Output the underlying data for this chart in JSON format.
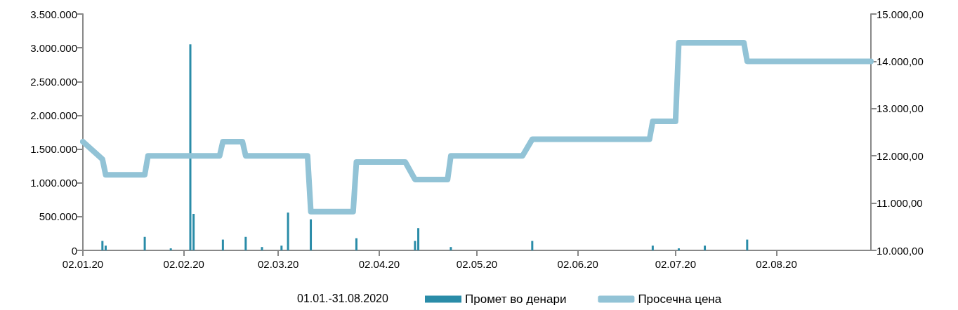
{
  "chart_data": {
    "type": "bar",
    "legend_title": "01.01.-31.08.2020",
    "xlim": [
      "2020-01-02",
      "2020-08-31"
    ],
    "xticks": [
      {
        "value": "2020-01-02",
        "label": "02.01.20"
      },
      {
        "value": "2020-02-02",
        "label": "02.02.20"
      },
      {
        "value": "2020-03-02",
        "label": "02.03.20"
      },
      {
        "value": "2020-04-02",
        "label": "02.04.20"
      },
      {
        "value": "2020-05-02",
        "label": "02.05.20"
      },
      {
        "value": "2020-06-02",
        "label": "02.06.20"
      },
      {
        "value": "2020-07-02",
        "label": "02.07.20"
      },
      {
        "value": "2020-08-02",
        "label": "02.08.20"
      }
    ],
    "ylim": [
      0,
      3500000
    ],
    "yticks": [
      {
        "value": 0,
        "label": "0"
      },
      {
        "value": 500000,
        "label": "500.000"
      },
      {
        "value": 1000000,
        "label": "1.000.000"
      },
      {
        "value": 1500000,
        "label": "1.500.000"
      },
      {
        "value": 2000000,
        "label": "2.000.000"
      },
      {
        "value": 2500000,
        "label": "2.500.000"
      },
      {
        "value": 3000000,
        "label": "3.000.000"
      },
      {
        "value": 3500000,
        "label": "3.500.000"
      }
    ],
    "y2lim": [
      10000,
      15000
    ],
    "y2ticks": [
      {
        "value": 10000,
        "label": "10.000,00"
      },
      {
        "value": 11000,
        "label": "11.000,00"
      },
      {
        "value": 12000,
        "label": "12.000,00"
      },
      {
        "value": 13000,
        "label": "13.000,00"
      },
      {
        "value": 14000,
        "label": "14.000,00"
      },
      {
        "value": 15000,
        "label": "15.000,00"
      }
    ],
    "grid": false,
    "legend": "bottom",
    "series": [
      {
        "name": "Промет во денари",
        "color": "#2a8ca8",
        "x": [
          "2020-01-08",
          "2020-01-09",
          "2020-01-21",
          "2020-01-29",
          "2020-02-04",
          "2020-02-05",
          "2020-02-14",
          "2020-02-21",
          "2020-02-26",
          "2020-03-03",
          "2020-03-05",
          "2020-03-12",
          "2020-03-26",
          "2020-04-13",
          "2020-04-14",
          "2020-04-24",
          "2020-05-19",
          "2020-06-25",
          "2020-07-03",
          "2020-07-11",
          "2020-07-24"
        ],
        "values": [
          140000,
          70000,
          200000,
          30000,
          3050000,
          540000,
          160000,
          200000,
          50000,
          70000,
          560000,
          460000,
          180000,
          140000,
          330000,
          50000,
          140000,
          70000,
          30000,
          70000,
          160000
        ]
      },
      {
        "name": "Просечна цена",
        "type": "line",
        "axis": "y2",
        "color": "#92c3d6",
        "marker": "none",
        "line_style": "solid",
        "x": [
          "2020-01-02",
          "2020-01-08",
          "2020-01-09",
          "2020-01-21",
          "2020-01-22",
          "2020-02-13",
          "2020-02-14",
          "2020-02-20",
          "2020-02-21",
          "2020-03-11",
          "2020-03-12",
          "2020-03-25",
          "2020-03-26",
          "2020-04-10",
          "2020-04-13",
          "2020-04-23",
          "2020-04-24",
          "2020-05-16",
          "2020-05-19",
          "2020-06-24",
          "2020-06-25",
          "2020-07-02",
          "2020-07-03",
          "2020-07-23",
          "2020-07-24",
          "2020-08-31"
        ],
        "values": [
          12300,
          11930,
          11600,
          11600,
          12000,
          12000,
          12300,
          12300,
          12000,
          12000,
          10820,
          10820,
          11870,
          11870,
          11500,
          11500,
          12000,
          12000,
          12350,
          12350,
          12730,
          12730,
          14390,
          14390,
          14000,
          14000
        ]
      }
    ]
  }
}
